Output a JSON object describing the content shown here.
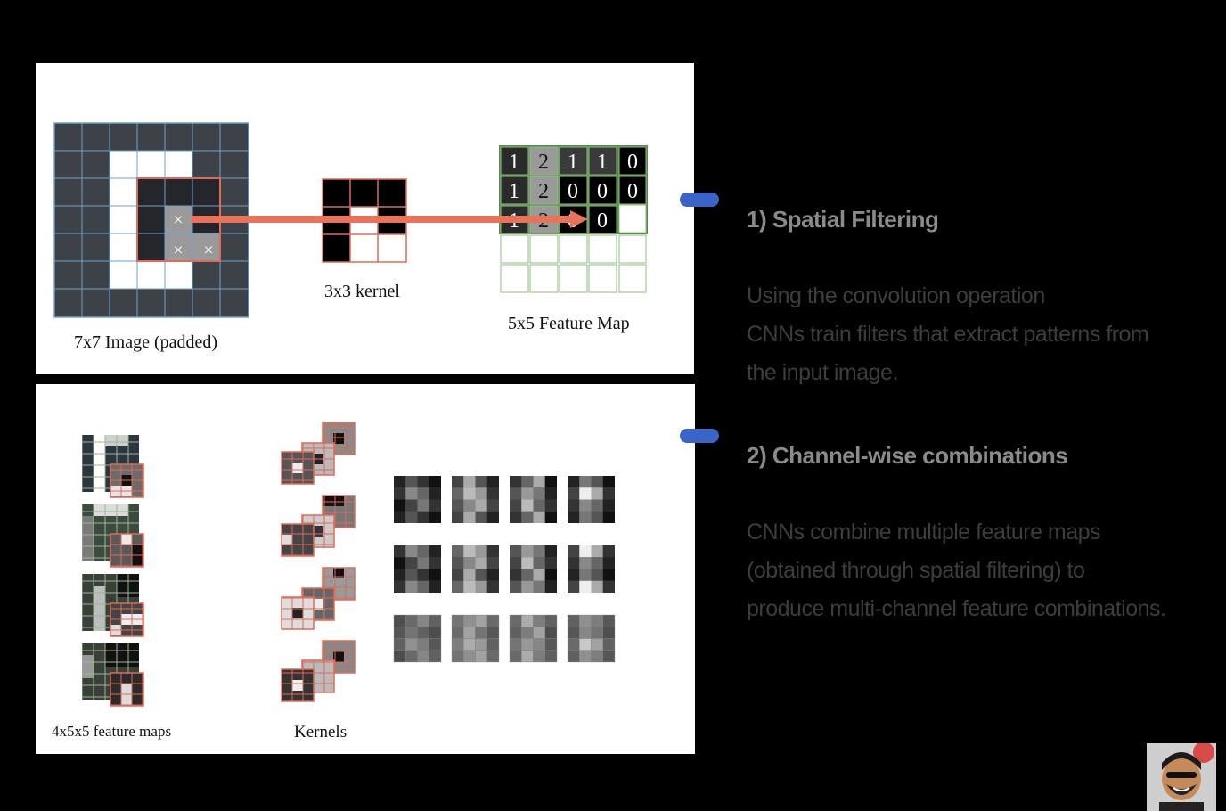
{
  "top_panel": {
    "image_label": "7x7 Image (padded)",
    "kernel_label": "3x3 kernel",
    "feature_map_label": "5x5 Feature Map",
    "feature_map_values": [
      [
        "1",
        "2",
        "1",
        "1",
        "0"
      ],
      [
        "1",
        "2",
        "0",
        "0",
        "0"
      ],
      [
        "1",
        "2",
        "0",
        "0",
        ""
      ]
    ],
    "kernel_marks": [
      "×",
      "×",
      "×"
    ]
  },
  "bottom_panel": {
    "feature_maps_label": "4x5x5 feature maps",
    "kernels_label": "Kernels"
  },
  "sections": [
    {
      "title": "1) Spatial Filtering",
      "lines": [
        "Using the convolution operation",
        "CNNs train filters that extract patterns from",
        "the input image."
      ]
    },
    {
      "title": "2) Channel-wise combinations",
      "lines": [
        "CNNs combine multiple feature maps",
        "(obtained through spatial filtering) to",
        "produce multi-channel feature combinations."
      ]
    }
  ],
  "colors": {
    "accent_arrow": "#e8735a",
    "kernel_border": "#e06a55",
    "feature_map_border": "#5a8a4a",
    "marker": "#3a64c8"
  }
}
